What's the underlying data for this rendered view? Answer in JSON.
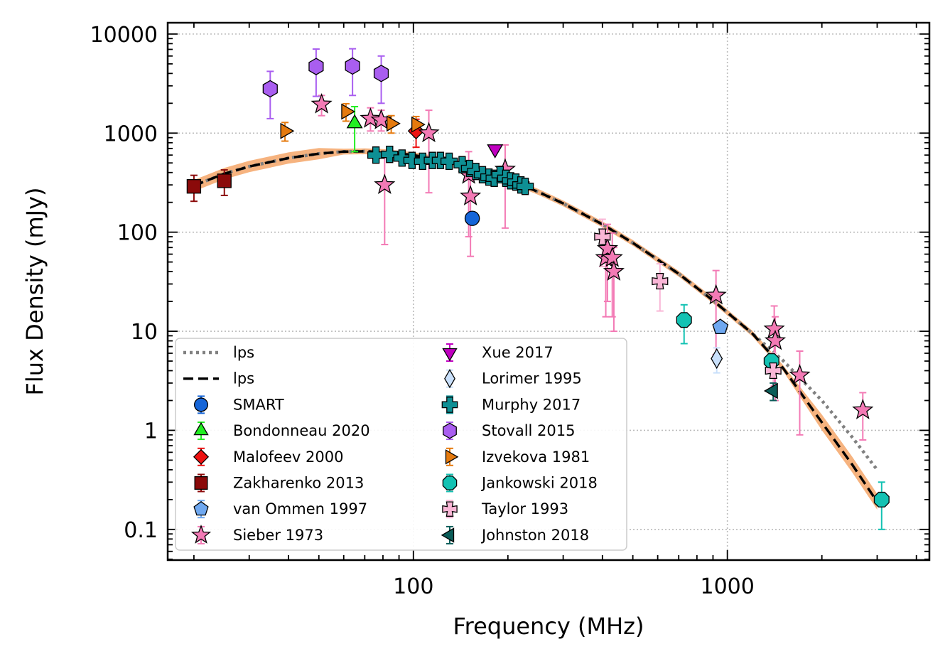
{
  "chart_data": {
    "type": "scatter",
    "title": "",
    "xlabel": "Frequency (MHz)",
    "ylabel": "Flux Density (mJy)",
    "xscale": "log",
    "yscale": "log",
    "xlim": [
      16.5,
      4400
    ],
    "ylim": [
      0.049,
      13000
    ],
    "grid": true,
    "legend_position": "lower-left",
    "x_ticks": [
      {
        "value": 100,
        "label": "100"
      },
      {
        "value": 1000,
        "label": "1000"
      }
    ],
    "y_ticks": [
      {
        "value": 0.1,
        "label": "0.1"
      },
      {
        "value": 1,
        "label": "1"
      },
      {
        "value": 10,
        "label": "10"
      },
      {
        "value": 100,
        "label": "100"
      },
      {
        "value": 1000,
        "label": "1000"
      },
      {
        "value": 10000,
        "label": "10000"
      }
    ],
    "band_color": "#f5a668",
    "model_lines": [
      {
        "name": "lps",
        "style": "dotted",
        "color": "#808080",
        "x": [
          20,
          25,
          30,
          40,
          50,
          60,
          70,
          80,
          100,
          130,
          160,
          200,
          250,
          300,
          400,
          500,
          700,
          900,
          1200,
          1500,
          2000,
          2500,
          3000
        ],
        "y": [
          295,
          390,
          460,
          560,
          620,
          650,
          655,
          645,
          600,
          520,
          430,
          340,
          255,
          195,
          120,
          78,
          38,
          20.5,
          9.5,
          5.1,
          2.0,
          0.85,
          0.4
        ]
      },
      {
        "name": "lps",
        "style": "dashed",
        "color": "#000000",
        "x": [
          20,
          25,
          30,
          40,
          50,
          60,
          70,
          80,
          100,
          130,
          160,
          200,
          250,
          300,
          400,
          500,
          700,
          900,
          1200,
          1500,
          2000,
          2500,
          3000
        ],
        "y": [
          295,
          390,
          460,
          560,
          620,
          650,
          655,
          645,
          600,
          520,
          430,
          340,
          255,
          195,
          120,
          78,
          38,
          20.5,
          9.5,
          4.3,
          1.2,
          0.45,
          0.19
        ]
      }
    ],
    "series": [
      {
        "name": "SMART",
        "marker": "circle",
        "color": "#1565d8",
        "ecolor": "#1565d8",
        "points": [
          {
            "x": 154,
            "y": 138,
            "ylo": 138,
            "yhi": 138
          }
        ]
      },
      {
        "name": "Bondonneau 2020",
        "marker": "triangle-up",
        "color": "#22ee22",
        "ecolor": "#22ee22",
        "points": [
          {
            "x": 65,
            "y": 1250,
            "ylo": 650,
            "yhi": 1850
          }
        ]
      },
      {
        "name": "Malofeev 2000",
        "marker": "diamond",
        "color": "#ee1111",
        "ecolor": "#ee1111",
        "points": [
          {
            "x": 102,
            "y": 1050,
            "ylo": 720,
            "yhi": 1380
          }
        ]
      },
      {
        "name": "Zakharenko 2013",
        "marker": "square",
        "color": "#8b0a0a",
        "ecolor": "#8b0a0a",
        "points": [
          {
            "x": 20,
            "y": 290,
            "ylo": 205,
            "yhi": 375
          },
          {
            "x": 25,
            "y": 330,
            "ylo": 235,
            "yhi": 425
          }
        ]
      },
      {
        "name": "van Ommen 1997",
        "marker": "pentagon",
        "color": "#6fa8f0",
        "ecolor": "#6fa8f0",
        "points": [
          {
            "x": 950,
            "y": 11,
            "ylo": 11,
            "yhi": 11
          }
        ]
      },
      {
        "name": "Sieber 1973",
        "marker": "star",
        "color": "#f37ab5",
        "ecolor": "#f37ab5",
        "points": [
          {
            "x": 51,
            "y": 1950,
            "ylo": 1500,
            "yhi": 2400
          },
          {
            "x": 73,
            "y": 1400,
            "ylo": 1050,
            "yhi": 1800
          },
          {
            "x": 79,
            "y": 1350,
            "ylo": 1050,
            "yhi": 1700
          },
          {
            "x": 81,
            "y": 300,
            "ylo": 75,
            "yhi": 600
          },
          {
            "x": 112,
            "y": 1000,
            "ylo": 250,
            "yhi": 1700
          },
          {
            "x": 150,
            "y": 380,
            "ylo": 90,
            "yhi": 650
          },
          {
            "x": 152,
            "y": 230,
            "ylo": 57,
            "yhi": 400
          },
          {
            "x": 196,
            "y": 430,
            "ylo": 110,
            "yhi": 760
          },
          {
            "x": 410,
            "y": 55,
            "ylo": 14,
            "yhi": 98
          },
          {
            "x": 415,
            "y": 68,
            "ylo": 20,
            "yhi": 120
          },
          {
            "x": 430,
            "y": 55,
            "ylo": 14,
            "yhi": 98
          },
          {
            "x": 435,
            "y": 40,
            "ylo": 10,
            "yhi": 70
          },
          {
            "x": 920,
            "y": 23,
            "ylo": 5.8,
            "yhi": 41
          },
          {
            "x": 1410,
            "y": 10.5,
            "ylo": 2.8,
            "yhi": 18
          },
          {
            "x": 1420,
            "y": 8,
            "ylo": 2,
            "yhi": 14
          },
          {
            "x": 1700,
            "y": 3.6,
            "ylo": 0.9,
            "yhi": 6.3
          },
          {
            "x": 2700,
            "y": 1.6,
            "ylo": 0.8,
            "yhi": 2.4
          }
        ]
      },
      {
        "name": "Xue 2017",
        "marker": "triangle-down",
        "color": "#c000c0",
        "ecolor": "#c000c0",
        "points": [
          {
            "x": 182,
            "y": 690,
            "ylo": 690,
            "yhi": 690
          }
        ]
      },
      {
        "name": "Lorimer 1995",
        "marker": "thin-diamond",
        "color": "#c9e0fb",
        "ecolor": "#c9e0fb",
        "points": [
          {
            "x": 925,
            "y": 5.3,
            "ylo": 3.8,
            "yhi": 6.8
          }
        ]
      },
      {
        "name": "Murphy 2017",
        "marker": "plus",
        "color": "#0e8f94",
        "ecolor": "#0e8f94",
        "points": [
          {
            "x": 76,
            "y": 600,
            "ylo": 600,
            "yhi": 600
          },
          {
            "x": 84,
            "y": 610,
            "ylo": 610,
            "yhi": 610
          },
          {
            "x": 92,
            "y": 560,
            "ylo": 560,
            "yhi": 560
          },
          {
            "x": 99,
            "y": 530,
            "ylo": 530,
            "yhi": 530
          },
          {
            "x": 107,
            "y": 520,
            "ylo": 520,
            "yhi": 520
          },
          {
            "x": 115,
            "y": 530,
            "ylo": 530,
            "yhi": 530
          },
          {
            "x": 122,
            "y": 530,
            "ylo": 530,
            "yhi": 530
          },
          {
            "x": 130,
            "y": 520,
            "ylo": 520,
            "yhi": 520
          },
          {
            "x": 143,
            "y": 480,
            "ylo": 480,
            "yhi": 480
          },
          {
            "x": 151,
            "y": 440,
            "ylo": 440,
            "yhi": 440
          },
          {
            "x": 158,
            "y": 410,
            "ylo": 410,
            "yhi": 410
          },
          {
            "x": 166,
            "y": 380,
            "ylo": 380,
            "yhi": 380
          },
          {
            "x": 174,
            "y": 360,
            "ylo": 360,
            "yhi": 360
          },
          {
            "x": 181,
            "y": 350,
            "ylo": 350,
            "yhi": 350
          },
          {
            "x": 189,
            "y": 380,
            "ylo": 380,
            "yhi": 380
          },
          {
            "x": 197,
            "y": 350,
            "ylo": 350,
            "yhi": 350
          },
          {
            "x": 204,
            "y": 330,
            "ylo": 330,
            "yhi": 330
          },
          {
            "x": 212,
            "y": 320,
            "ylo": 320,
            "yhi": 320
          },
          {
            "x": 220,
            "y": 300,
            "ylo": 300,
            "yhi": 300
          },
          {
            "x": 227,
            "y": 290,
            "ylo": 290,
            "yhi": 290
          }
        ]
      },
      {
        "name": "Stovall 2015",
        "marker": "hexagon",
        "color": "#a95ef0",
        "ecolor": "#a95ef0",
        "points": [
          {
            "x": 35,
            "y": 2800,
            "ylo": 1400,
            "yhi": 4200
          },
          {
            "x": 49,
            "y": 4700,
            "ylo": 2350,
            "yhi": 7050
          },
          {
            "x": 64,
            "y": 4750,
            "ylo": 2400,
            "yhi": 7100
          },
          {
            "x": 79,
            "y": 4000,
            "ylo": 2000,
            "yhi": 6000
          }
        ]
      },
      {
        "name": "Izvekova 1981",
        "marker": "triangle-right",
        "color": "#e57a0e",
        "ecolor": "#e57a0e",
        "points": [
          {
            "x": 39,
            "y": 1050,
            "ylo": 830,
            "yhi": 1280
          },
          {
            "x": 61,
            "y": 1650,
            "ylo": 1320,
            "yhi": 1980
          },
          {
            "x": 85,
            "y": 1250,
            "ylo": 1000,
            "yhi": 1500
          },
          {
            "x": 102,
            "y": 1220,
            "ylo": 970,
            "yhi": 1470
          }
        ]
      },
      {
        "name": "Jankowski 2018",
        "marker": "octagon",
        "color": "#13c2b3",
        "ecolor": "#13c2b3",
        "points": [
          {
            "x": 728,
            "y": 13,
            "ylo": 7.5,
            "yhi": 18.5
          },
          {
            "x": 1382,
            "y": 5,
            "ylo": 4,
            "yhi": 6
          },
          {
            "x": 3100,
            "y": 0.2,
            "ylo": 0.1,
            "yhi": 0.3
          }
        ]
      },
      {
        "name": "Taylor 1993",
        "marker": "x-filled",
        "color": "#f9b6d6",
        "ecolor": "#f9b6d6",
        "points": [
          {
            "x": 400,
            "y": 90,
            "ylo": 45,
            "yhi": 135
          },
          {
            "x": 610,
            "y": 32,
            "ylo": 16,
            "yhi": 48
          },
          {
            "x": 1400,
            "y": 4,
            "ylo": 2,
            "yhi": 6
          }
        ]
      },
      {
        "name": "Johnston 2018",
        "marker": "triangle-left",
        "color": "#0b5d59",
        "ecolor": "#0b5d59",
        "points": [
          {
            "x": 1400,
            "y": 2.5,
            "ylo": 2,
            "yhi": 3
          }
        ]
      }
    ]
  }
}
